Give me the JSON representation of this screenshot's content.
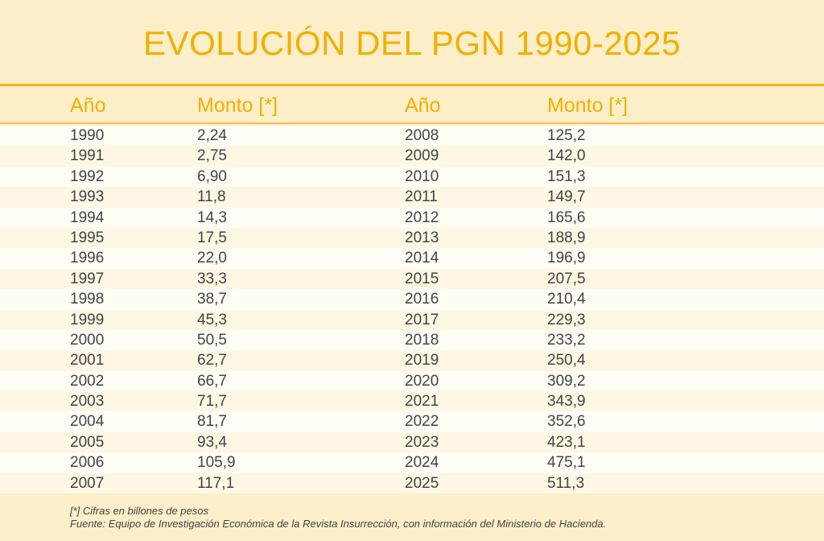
{
  "title": "EVOLUCIÓN DEL PGN 1990-2025",
  "headers": {
    "year": "Año",
    "amount": "Monto [*]"
  },
  "left": [
    [
      "1990",
      "2,24"
    ],
    [
      "1991",
      "2,75"
    ],
    [
      "1992",
      "6,90"
    ],
    [
      "1993",
      "11,8"
    ],
    [
      "1994",
      "14,3"
    ],
    [
      "1995",
      "17,5"
    ],
    [
      "1996",
      "22,0"
    ],
    [
      "1997",
      "33,3"
    ],
    [
      "1998",
      "38,7"
    ],
    [
      "1999",
      "45,3"
    ],
    [
      "2000",
      "50,5"
    ],
    [
      "2001",
      "62,7"
    ],
    [
      "2002",
      "66,7"
    ],
    [
      "2003",
      "71,7"
    ],
    [
      "2004",
      "81,7"
    ],
    [
      "2005",
      "93,4"
    ],
    [
      "2006",
      "105,9"
    ],
    [
      "2007",
      "117,1"
    ]
  ],
  "right": [
    [
      "2008",
      "125,2"
    ],
    [
      "2009",
      "142,0"
    ],
    [
      "2010",
      "151,3"
    ],
    [
      "2011",
      "149,7"
    ],
    [
      "2012",
      "165,6"
    ],
    [
      "2013",
      "188,9"
    ],
    [
      "2014",
      "196,9"
    ],
    [
      "2015",
      "207,5"
    ],
    [
      "2016",
      "210,4"
    ],
    [
      "2017",
      "229,3"
    ],
    [
      "2018",
      "233,2"
    ],
    [
      "2019",
      "250,4"
    ],
    [
      "2020",
      "309,2"
    ],
    [
      "2021",
      "343,9"
    ],
    [
      "2022",
      "352,6"
    ],
    [
      "2023",
      "423,1"
    ],
    [
      "2024",
      "475,1"
    ],
    [
      "2025",
      "511,3"
    ]
  ],
  "notes": {
    "footnote": "[*] Cifras en billones de pesos",
    "source": "Fuente: Equipo de Investigación Económica de la Revista Insurrección, con información del Ministerio de Hacienda."
  },
  "colors": {
    "accent": "#f0b000",
    "background": "#fbeec9"
  }
}
